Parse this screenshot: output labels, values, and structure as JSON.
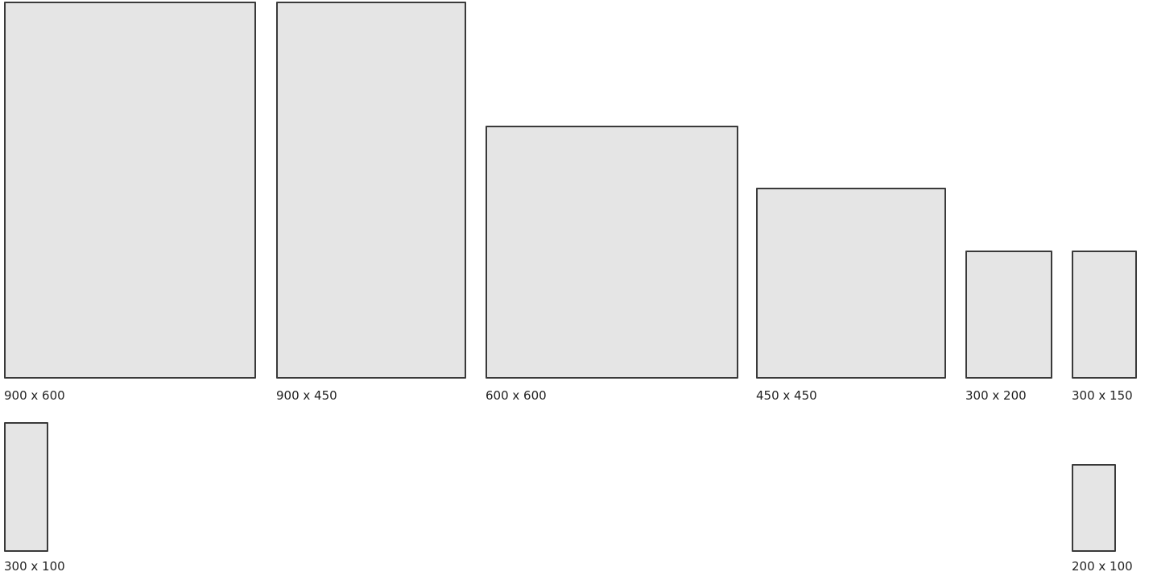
{
  "tiles": [
    {
      "label": "900 x 600"
    },
    {
      "label": "900 x 450"
    },
    {
      "label": "600 x 600"
    },
    {
      "label": "450 x 450"
    },
    {
      "label": "300 x 200"
    },
    {
      "label": "300 x 150"
    },
    {
      "label": "300 x 100"
    },
    {
      "label": "200 x 100"
    }
  ],
  "colors": {
    "tile_fill": "#e5e5e5",
    "tile_border": "#3a3a3a",
    "label_text": "#222222",
    "background": "#ffffff"
  }
}
